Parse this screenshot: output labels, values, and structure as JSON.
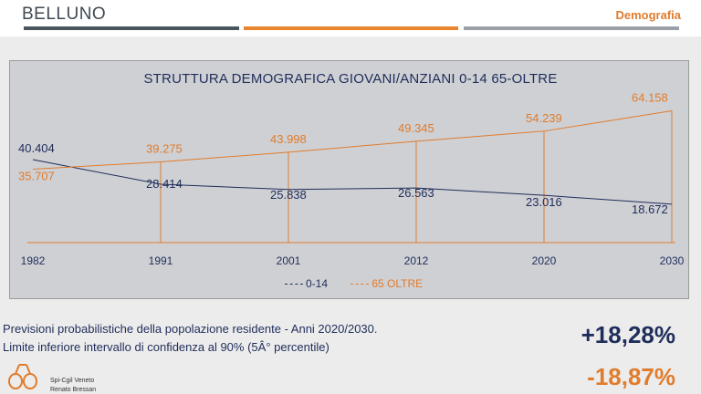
{
  "header": {
    "title": "BELLUNO",
    "section": "Demografia"
  },
  "chart_data": {
    "type": "line",
    "title": "STRUTTURA DEMOGRAFICA GIOVANI/ANZIANI 0-14   65-OLTRE",
    "categories": [
      "1982",
      "1991",
      "2001",
      "2012",
      "2020",
      "2030"
    ],
    "series": [
      {
        "name": "0-14",
        "color": "#1f2d5a",
        "values": [
          40404,
          28414,
          25838,
          26563,
          23016,
          18672
        ],
        "labels": [
          "40.404",
          "28.414",
          "25.838",
          "26.563",
          "23.016",
          "18.672"
        ]
      },
      {
        "name": "65 OLTRE",
        "color": "#e07c2c",
        "values": [
          35707,
          39275,
          43998,
          49345,
          54239,
          64158
        ],
        "labels": [
          "35.707",
          "39.275",
          "43.998",
          "49.345",
          "54.239",
          "64.158"
        ]
      }
    ],
    "ylim": [
      0,
      68000
    ],
    "grid": false,
    "legend": "bottom"
  },
  "footer": {
    "line1": "Previsioni probabilistiche della popolazione residente - Anni 2020/2030.",
    "line2": "Limite inferiore intervallo di confidenza al 90% (5Â° percentile)",
    "pct_up": "+18,28%",
    "pct_down": "-18,87%",
    "logo_line1": "Spi-Cgil Veneto",
    "logo_line2": "Renato Bressan"
  }
}
